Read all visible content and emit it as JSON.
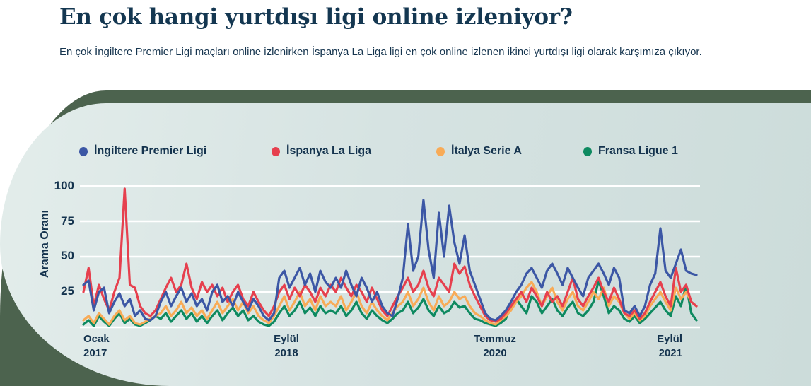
{
  "title": "En çok hangi yurtdışı ligi online izleniyor?",
  "subtitle": "En çok İngiltere Premier Ligi maçları online izlenirken İspanya La Liga ligi en çok online izlenen ikinci yurtdışı ligi olarak karşımıza çıkıyor.",
  "colors": {
    "heading_navy": "#143751",
    "band_green": "#4C634E",
    "panel_light": "#D6E3E2",
    "gridline": "#FFFFFF"
  },
  "chart_data": {
    "type": "line",
    "title": "En çok hangi yurtdışı ligi online izleniyor?",
    "xlabel": "",
    "ylabel": "Arama Oranı",
    "ylim": [
      0,
      100
    ],
    "grid": true,
    "grid_values": [
      0,
      25,
      50,
      75,
      100
    ],
    "ytick_labels": [
      "100",
      "75",
      "50",
      "25"
    ],
    "x_axis_labels": [
      {
        "line1": "Ocak",
        "line2": "2017"
      },
      {
        "line1": "Eylül",
        "line2": "2018"
      },
      {
        "line1": "Temmuz",
        "line2": "2020"
      },
      {
        "line1": "Eylül",
        "line2": "2021"
      }
    ],
    "x_range_note": "weekly Google-Trends style samples, Ocak 2017 - Eylül 2021",
    "legend_position": "top",
    "series": [
      {
        "name": "İngiltere Premier Ligi",
        "color": "#3C57A5",
        "values": [
          30,
          33,
          12,
          25,
          28,
          10,
          18,
          24,
          15,
          20,
          8,
          12,
          6,
          5,
          8,
          18,
          25,
          15,
          22,
          28,
          18,
          24,
          15,
          20,
          12,
          25,
          30,
          18,
          22,
          15,
          25,
          18,
          12,
          20,
          15,
          8,
          5,
          10,
          35,
          40,
          28,
          35,
          42,
          30,
          38,
          25,
          40,
          32,
          28,
          35,
          28,
          40,
          30,
          22,
          35,
          28,
          18,
          25,
          15,
          10,
          8,
          20,
          35,
          73,
          40,
          50,
          90,
          55,
          35,
          81,
          50,
          86,
          60,
          45,
          65,
          40,
          30,
          20,
          10,
          6,
          5,
          8,
          12,
          18,
          25,
          30,
          38,
          42,
          35,
          28,
          40,
          45,
          38,
          30,
          42,
          35,
          28,
          22,
          35,
          40,
          45,
          38,
          30,
          42,
          35,
          12,
          10,
          15,
          8,
          15,
          30,
          38,
          70,
          40,
          35,
          45,
          55,
          40,
          38,
          37
        ]
      },
      {
        "name": "İspanya La Liga",
        "color": "#E6404E",
        "values": [
          25,
          42,
          15,
          30,
          20,
          12,
          25,
          35,
          98,
          30,
          28,
          15,
          10,
          8,
          12,
          20,
          28,
          35,
          25,
          30,
          45,
          28,
          20,
          32,
          25,
          30,
          22,
          28,
          18,
          25,
          30,
          20,
          15,
          25,
          18,
          12,
          8,
          15,
          25,
          30,
          20,
          28,
          22,
          30,
          25,
          18,
          28,
          22,
          30,
          25,
          35,
          28,
          22,
          30,
          25,
          18,
          28,
          20,
          12,
          8,
          15,
          22,
          28,
          35,
          25,
          30,
          40,
          28,
          22,
          35,
          30,
          25,
          45,
          38,
          43,
          30,
          22,
          15,
          8,
          5,
          4,
          6,
          10,
          15,
          20,
          25,
          18,
          28,
          22,
          15,
          25,
          18,
          22,
          15,
          25,
          35,
          20,
          15,
          22,
          28,
          35,
          25,
          18,
          28,
          20,
          10,
          8,
          12,
          6,
          10,
          18,
          25,
          32,
          22,
          15,
          42,
          25,
          30,
          18,
          15
        ]
      },
      {
        "name": "İtalya Serie A",
        "color": "#F8AB57",
        "values": [
          5,
          8,
          3,
          10,
          6,
          2,
          8,
          12,
          5,
          8,
          3,
          2,
          4,
          6,
          8,
          10,
          15,
          8,
          12,
          18,
          10,
          14,
          8,
          12,
          6,
          12,
          18,
          10,
          15,
          20,
          12,
          18,
          10,
          15,
          8,
          5,
          3,
          8,
          15,
          22,
          12,
          18,
          25,
          15,
          20,
          12,
          22,
          15,
          18,
          15,
          22,
          12,
          18,
          25,
          15,
          10,
          18,
          12,
          8,
          5,
          10,
          15,
          18,
          25,
          15,
          20,
          28,
          18,
          12,
          22,
          15,
          18,
          25,
          20,
          22,
          15,
          10,
          8,
          5,
          3,
          2,
          5,
          8,
          12,
          18,
          22,
          28,
          32,
          25,
          15,
          22,
          28,
          18,
          12,
          20,
          25,
          15,
          12,
          18,
          25,
          20,
          28,
          15,
          22,
          18,
          10,
          6,
          10,
          5,
          8,
          15,
          20,
          25,
          18,
          12,
          28,
          20,
          25,
          18,
          15
        ]
      },
      {
        "name": "Fransa Ligue 1",
        "color": "#0E8A60",
        "values": [
          2,
          5,
          1,
          8,
          4,
          1,
          6,
          10,
          3,
          6,
          2,
          1,
          3,
          5,
          8,
          6,
          10,
          4,
          8,
          12,
          6,
          10,
          4,
          8,
          3,
          8,
          12,
          5,
          10,
          14,
          8,
          12,
          5,
          8,
          4,
          2,
          1,
          4,
          10,
          15,
          8,
          12,
          18,
          10,
          14,
          8,
          15,
          10,
          12,
          10,
          15,
          8,
          12,
          18,
          10,
          6,
          12,
          8,
          5,
          3,
          6,
          10,
          12,
          18,
          10,
          14,
          20,
          12,
          8,
          15,
          10,
          12,
          18,
          14,
          15,
          10,
          6,
          5,
          3,
          2,
          1,
          3,
          6,
          15,
          20,
          15,
          10,
          22,
          18,
          10,
          15,
          20,
          12,
          8,
          14,
          18,
          10,
          8,
          12,
          18,
          33,
          22,
          10,
          15,
          12,
          6,
          4,
          8,
          3,
          6,
          10,
          14,
          18,
          12,
          8,
          22,
          15,
          30,
          10,
          5
        ]
      }
    ]
  }
}
